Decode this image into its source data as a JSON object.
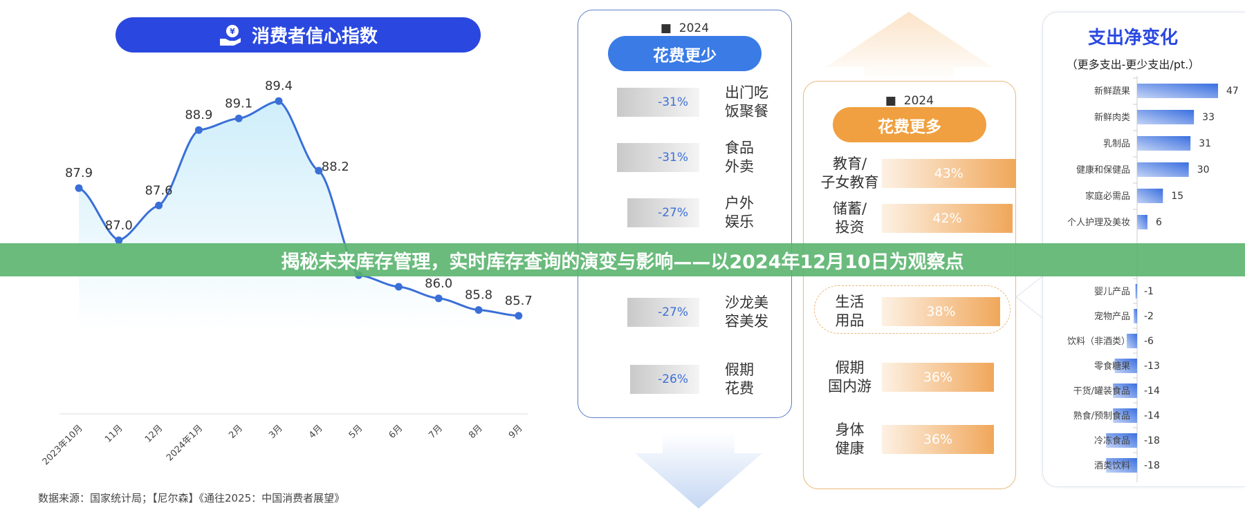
{
  "banner": {
    "title": "揭秘未来库存管理，实时库存查询的演变与影响——以2024年12月10日为观察点"
  },
  "chart_data": [
    {
      "type": "line",
      "title": "消费者信心指数",
      "icon": "hand-yuan-icon",
      "categories": [
        "2023年10月",
        "11月",
        "12月",
        "2024年1月",
        "2月",
        "3月",
        "4月",
        "5月",
        "6月",
        "7月",
        "8月",
        "9月"
      ],
      "values": [
        87.9,
        87.0,
        87.6,
        88.9,
        89.1,
        89.4,
        88.2,
        86.4,
        86.2,
        86.0,
        85.8,
        85.7
      ],
      "labels": [
        "87.9",
        "87.0",
        "87.6",
        "88.9",
        "89.1",
        "89.4",
        "88.2",
        "",
        "",
        "86.0",
        "85.8",
        "85.7"
      ],
      "grid": false,
      "color": "#3a6fd8",
      "source": "数据来源：国家统计局；【尼尔森】《通往2025：中国消费者展望》"
    },
    {
      "type": "bar",
      "legend": "2024",
      "title": "花费更少",
      "color": "#3a6fd8",
      "categories": [
        "出门吃饭聚餐",
        "食品外卖",
        "户外娱乐",
        "沙龙美容美发",
        "假期花费"
      ],
      "label_lines": [
        [
          "出门吃",
          "饭聚餐"
        ],
        [
          "食品",
          "外卖"
        ],
        [
          "户外",
          "娱乐"
        ],
        [
          "沙龙美",
          "容美发"
        ],
        [
          "假期",
          "花费"
        ]
      ],
      "values": [
        -31,
        -31,
        -27,
        -27,
        -26
      ],
      "labels": [
        "-31%",
        "-31%",
        "-27%",
        "-27%",
        "-26%"
      ]
    },
    {
      "type": "bar",
      "legend": "2024",
      "title": "花费更多",
      "color": "#f0a040",
      "categories": [
        "教育/子女教育",
        "储蓄/投资",
        "生活用品",
        "假期国内游",
        "身体健康"
      ],
      "label_lines": [
        [
          "教育/",
          "子女教育"
        ],
        [
          "储蓄/",
          "投资"
        ],
        [
          "生活",
          "用品"
        ],
        [
          "假期",
          "国内游"
        ],
        [
          "身体",
          "健康"
        ]
      ],
      "values": [
        43,
        42,
        38,
        36,
        36
      ],
      "labels": [
        "43%",
        "42%",
        "38%",
        "36%",
        "36%"
      ],
      "highlight": "生活用品"
    },
    {
      "type": "bar",
      "orientation": "horizontal",
      "title": "支出净变化",
      "subtitle": "（更多支出-更少支出/pt.）",
      "color": "#3a6fd8",
      "categories": [
        "新鲜蔬果",
        "新鲜肉类",
        "乳制品",
        "健康和保健品",
        "家庭必需品",
        "个人护理及美妆",
        "婴儿产品",
        "宠物产品",
        "饮料（非酒类）",
        "零食糖果",
        "干货/罐装食品",
        "熟食/预制食品",
        "冷冻食品",
        "酒类饮料"
      ],
      "values": [
        47,
        33,
        31,
        30,
        15,
        6,
        -1,
        -2,
        -6,
        -13,
        -14,
        -14,
        -18,
        -18
      ]
    }
  ]
}
